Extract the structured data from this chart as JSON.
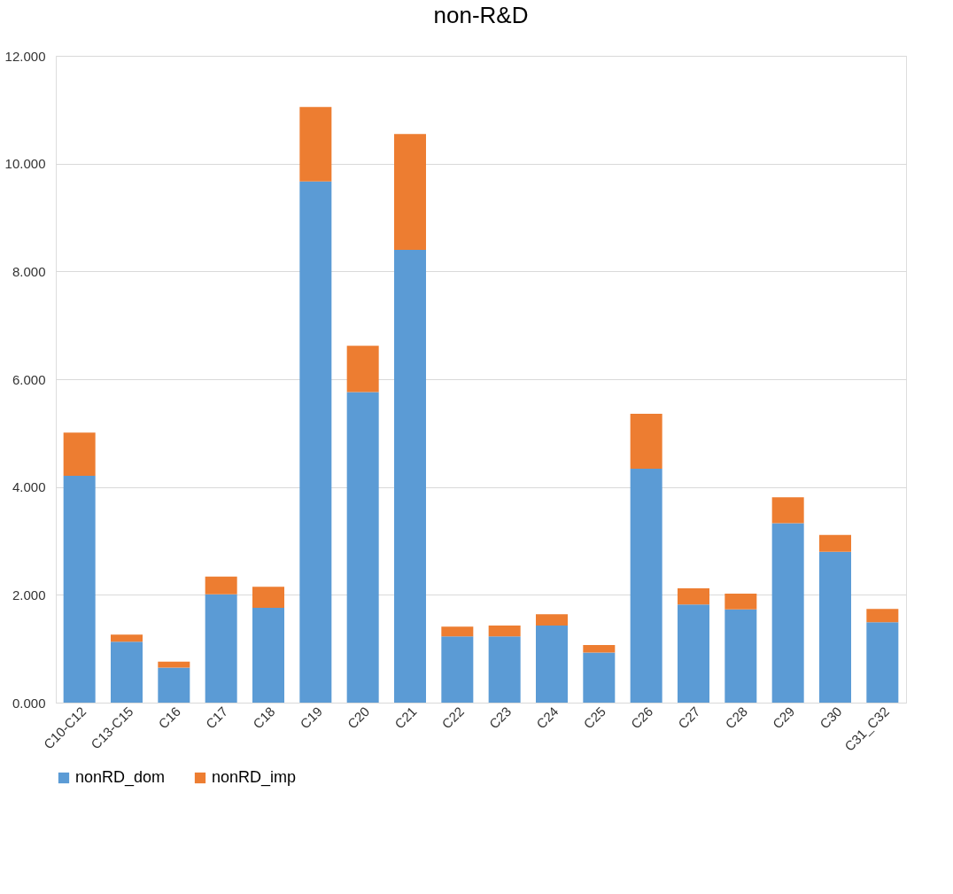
{
  "chart_data": {
    "type": "bar",
    "title": "non-R&D",
    "stacked": true,
    "categories": [
      "C10-C12",
      "C13-C15",
      "C16",
      "C17",
      "C18",
      "C19",
      "C20",
      "C21",
      "C22",
      "C23",
      "C24",
      "C25",
      "C26",
      "C27",
      "C28",
      "C29",
      "C30",
      "C31_C32"
    ],
    "series": [
      {
        "name": "nonRD_dom",
        "color": "#5b9bd5",
        "values": [
          4.21,
          1.13,
          0.65,
          2.01,
          1.76,
          9.67,
          5.76,
          8.4,
          1.23,
          1.23,
          1.43,
          0.93,
          4.34,
          1.82,
          1.73,
          3.33,
          2.8,
          1.49
        ]
      },
      {
        "name": "nonRD_imp",
        "color": "#ed7d31",
        "values": [
          0.8,
          0.13,
          0.11,
          0.33,
          0.39,
          1.38,
          0.86,
          2.15,
          0.18,
          0.2,
          0.21,
          0.14,
          1.02,
          0.3,
          0.29,
          0.48,
          0.31,
          0.25
        ]
      }
    ],
    "ylim": [
      0,
      12
    ],
    "yticks": [
      {
        "value": 0,
        "label": "0.000"
      },
      {
        "value": 2,
        "label": "2.000"
      },
      {
        "value": 4,
        "label": "4.000"
      },
      {
        "value": 6,
        "label": "6.000"
      },
      {
        "value": 8,
        "label": "8.000"
      },
      {
        "value": 10,
        "label": "10.000"
      },
      {
        "value": 12,
        "label": "12.000"
      }
    ],
    "grid": "y",
    "legend": "bottom"
  }
}
